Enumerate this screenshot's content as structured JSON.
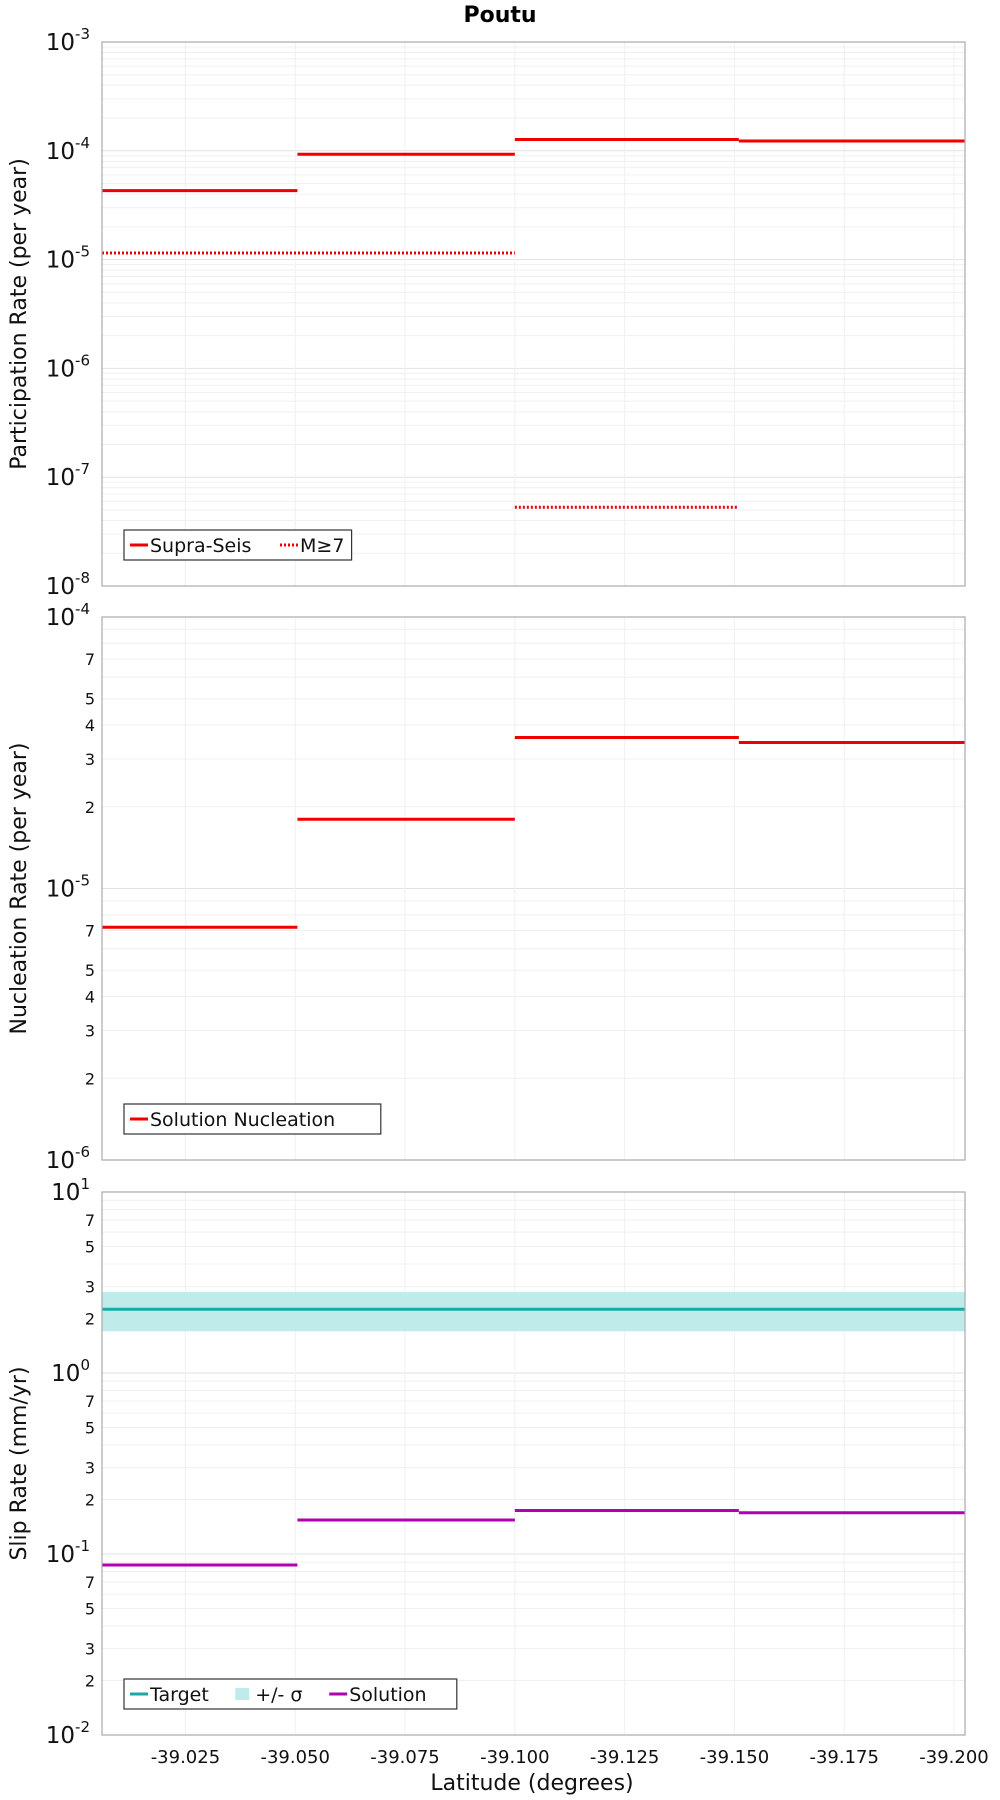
{
  "title": "Poutu",
  "xlabel": "Latitude (degrees)",
  "xlim": [
    -39.006,
    -39.2025
  ],
  "xticks": [
    "-39.025",
    "-39.050",
    "-39.075",
    "-39.100",
    "-39.125",
    "-39.150",
    "-39.175",
    "-39.200"
  ],
  "colors": {
    "red": "#ee0000",
    "teal": "#1aa8a8",
    "band": "#bfeceb",
    "magenta": "#b000b0"
  },
  "chart_data": [
    {
      "type": "line",
      "ylabel": "Participation Rate (per year)",
      "yscale": "log",
      "ylim": [
        1e-08,
        0.001
      ],
      "series": [
        {
          "name": "Supra-Seis",
          "style": "solid",
          "color": "#ee0000",
          "segments": [
            {
              "x": [
                -39.006,
                -39.0505
              ],
              "y": 4.3e-05
            },
            {
              "x": [
                -39.0505,
                -39.1
              ],
              "y": 9.3e-05
            },
            {
              "x": [
                -39.1,
                -39.151
              ],
              "y": 0.000127
            },
            {
              "x": [
                -39.151,
                -39.2025
              ],
              "y": 0.000123
            }
          ]
        },
        {
          "name": "M≥7",
          "style": "dotted",
          "color": "#ee0000",
          "segments": [
            {
              "x": [
                -39.006,
                -39.1
              ],
              "y": 1.15e-05
            },
            {
              "x": [
                -39.1,
                -39.151
              ],
              "y": 5.3e-08
            }
          ]
        }
      ],
      "legend": [
        {
          "label": "Supra-Seis",
          "style": "solid",
          "color": "#ee0000"
        },
        {
          "label": "M≥7",
          "style": "dotted",
          "color": "#ee0000"
        }
      ],
      "legend_position": "bottom-left"
    },
    {
      "type": "line",
      "ylabel": "Nucleation Rate (per year)",
      "yscale": "log",
      "ylim": [
        1e-06,
        0.0001
      ],
      "minor_tick_labels": [
        "2",
        "3",
        "4",
        "5",
        "7"
      ],
      "series": [
        {
          "name": "Solution Nucleation",
          "style": "solid",
          "color": "#ee0000",
          "segments": [
            {
              "x": [
                -39.006,
                -39.0505
              ],
              "y": 7.2e-06
            },
            {
              "x": [
                -39.0505,
                -39.1
              ],
              "y": 1.8e-05
            },
            {
              "x": [
                -39.1,
                -39.151
              ],
              "y": 3.6e-05
            },
            {
              "x": [
                -39.151,
                -39.2025
              ],
              "y": 3.45e-05
            }
          ]
        }
      ],
      "legend": [
        {
          "label": "Solution Nucleation",
          "style": "solid",
          "color": "#ee0000"
        }
      ],
      "legend_position": "bottom-left"
    },
    {
      "type": "line",
      "ylabel": "Slip Rate (mm/yr)",
      "yscale": "log",
      "ylim": [
        0.01,
        10
      ],
      "minor_tick_labels": [
        "2",
        "3",
        "5",
        "7"
      ],
      "band": {
        "name": "+/- σ",
        "color": "#bfeceb",
        "low": 1.7,
        "high": 2.8
      },
      "series": [
        {
          "name": "Target",
          "style": "solid",
          "color": "#1aa8a8",
          "segments": [
            {
              "x": [
                -39.006,
                -39.2025
              ],
              "y": 2.25
            }
          ]
        },
        {
          "name": "Solution",
          "style": "solid",
          "color": "#b000b0",
          "segments": [
            {
              "x": [
                -39.006,
                -39.0505
              ],
              "y": 0.087
            },
            {
              "x": [
                -39.0505,
                -39.1
              ],
              "y": 0.154
            },
            {
              "x": [
                -39.1,
                -39.151
              ],
              "y": 0.174
            },
            {
              "x": [
                -39.151,
                -39.2025
              ],
              "y": 0.169
            }
          ]
        }
      ],
      "legend": [
        {
          "label": "Target",
          "style": "solid",
          "color": "#1aa8a8"
        },
        {
          "label": "+/- σ",
          "style": "band",
          "color": "#bfeceb"
        },
        {
          "label": "Solution",
          "style": "solid",
          "color": "#b000b0"
        }
      ],
      "legend_position": "bottom-left"
    }
  ]
}
